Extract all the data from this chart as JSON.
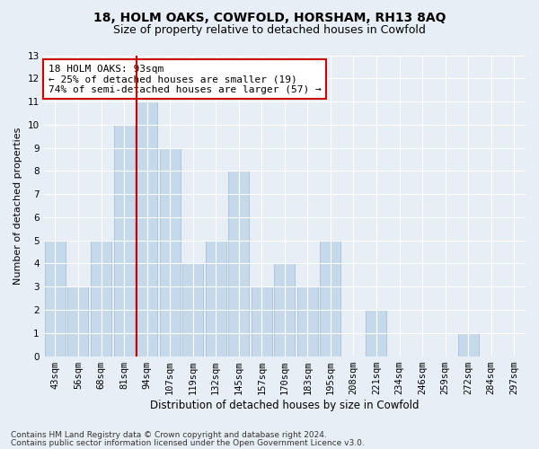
{
  "title1": "18, HOLM OAKS, COWFOLD, HORSHAM, RH13 8AQ",
  "title2": "Size of property relative to detached houses in Cowfold",
  "xlabel": "Distribution of detached houses by size in Cowfold",
  "ylabel": "Number of detached properties",
  "categories": [
    "43sqm",
    "56sqm",
    "68sqm",
    "81sqm",
    "94sqm",
    "107sqm",
    "119sqm",
    "132sqm",
    "145sqm",
    "157sqm",
    "170sqm",
    "183sqm",
    "195sqm",
    "208sqm",
    "221sqm",
    "234sqm",
    "246sqm",
    "259sqm",
    "272sqm",
    "284sqm",
    "297sqm"
  ],
  "values": [
    5,
    3,
    5,
    10,
    11,
    9,
    4,
    5,
    8,
    3,
    4,
    3,
    5,
    0,
    2,
    0,
    0,
    0,
    1,
    0,
    0
  ],
  "bar_color": "#c6d9ea",
  "bar_edgecolor": "#9bb8d0",
  "vline_index": 4,
  "vline_color": "#cc0000",
  "annotation_line1": "18 HOLM OAKS: 93sqm",
  "annotation_line2": "← 25% of detached houses are smaller (19)",
  "annotation_line3": "74% of semi-detached houses are larger (57) →",
  "annotation_box_edgecolor": "#cc0000",
  "annotation_box_facecolor": "#ffffff",
  "ylim": [
    0,
    13
  ],
  "yticks": [
    0,
    1,
    2,
    3,
    4,
    5,
    6,
    7,
    8,
    9,
    10,
    11,
    12,
    13
  ],
  "footer1": "Contains HM Land Registry data © Crown copyright and database right 2024.",
  "footer2": "Contains public sector information licensed under the Open Government Licence v3.0.",
  "background_color": "#e8eef5",
  "plot_bg_color": "#e8eef5",
  "grid_color": "#ffffff",
  "title1_fontsize": 10,
  "title2_fontsize": 9,
  "xlabel_fontsize": 8.5,
  "ylabel_fontsize": 8,
  "tick_fontsize": 7.5,
  "footer_fontsize": 6.5,
  "annotation_fontsize": 8
}
